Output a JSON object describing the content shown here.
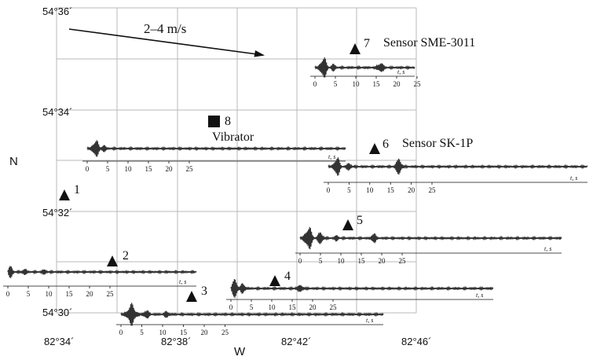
{
  "map": {
    "lat_labels": [
      "54°36´",
      "54°34´",
      "54°32´",
      "54°30´"
    ],
    "lon_labels": [
      "82°34´",
      "82°38´",
      "82°42´",
      "82°46´"
    ],
    "north_label": "N",
    "west_label": "W",
    "wind_label": "2–4 m/s",
    "colors": {
      "grid": "#b9b9b9",
      "trace": "#333333",
      "ink": "#111111"
    }
  },
  "sites": [
    {
      "number": "1",
      "marker": "triangle"
    },
    {
      "number": "2",
      "marker": "triangle"
    },
    {
      "number": "3",
      "marker": "triangle"
    },
    {
      "number": "4",
      "marker": "triangle"
    },
    {
      "number": "5",
      "marker": "triangle"
    },
    {
      "number": "6",
      "marker": "triangle",
      "name": "Sensor SK-1P"
    },
    {
      "number": "7",
      "marker": "triangle",
      "name": "Sensor SME-3011"
    },
    {
      "number": "8",
      "marker": "square",
      "name": "Vibrator"
    }
  ],
  "seismograms": {
    "axis_unit": "t, s",
    "ticks": [
      "0",
      "5",
      "10",
      "15",
      "20",
      "25"
    ]
  }
}
